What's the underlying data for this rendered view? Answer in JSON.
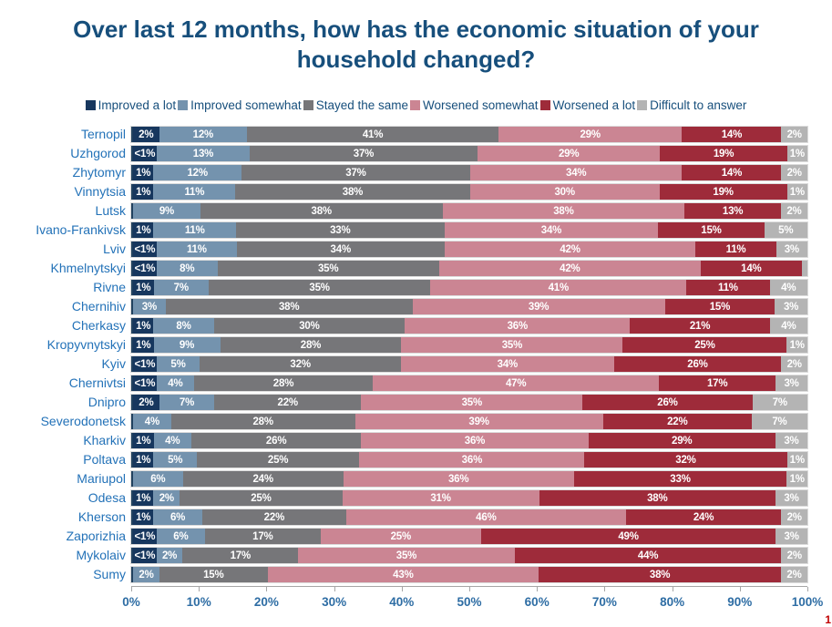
{
  "title": "Over last 12 months, how has the economic situation of your household changed?",
  "page_number": "1",
  "colors": {
    "title_text": "#174F7C",
    "category_text": "#2372B8",
    "axis_text": "#2E6DA4",
    "segment_label_text": "#ffffff"
  },
  "chart_data": {
    "type": "bar",
    "stacked": true,
    "orientation": "horizontal",
    "title": "Over last 12 months, how has the economic situation of your household changed?",
    "xlabel": "",
    "ylabel": "",
    "xlim": [
      0,
      100
    ],
    "grid": false,
    "legend_position": "top",
    "x_axis_ticks": [
      "0%",
      "10%",
      "20%",
      "30%",
      "40%",
      "50%",
      "60%",
      "70%",
      "80%",
      "90%",
      "100%"
    ],
    "categories": [
      "Ternopil",
      "Uzhgorod",
      "Zhytomyr",
      "Vinnytsia",
      "Lutsk",
      "Ivano-Frankivsk",
      "Lviv",
      "Khmelnytskyi",
      "Rivne",
      "Chernihiv",
      "Cherkasy",
      "Kropyvnytskyi",
      "Kyiv",
      "Chernivtsi",
      "Dnipro",
      "Severodonetsk",
      "Kharkiv",
      "Poltava",
      "Mariupol",
      "Odesa",
      "Kherson",
      "Zaporizhia",
      "Mykolaiv",
      "Sumy"
    ],
    "series": [
      {
        "name": "Improved a lot",
        "color": "#17375E",
        "values": [
          2,
          0.5,
          1,
          1,
          0,
          1,
          0.5,
          0.5,
          1,
          0,
          1,
          1,
          0.5,
          0.5,
          2,
          0,
          1,
          1,
          0,
          1,
          1,
          0.5,
          0.5,
          0
        ],
        "labels": [
          "2%",
          "<1%",
          "1%",
          "1%",
          "",
          "1%",
          "<1%",
          "<1%",
          "1%",
          "",
          "1%",
          "1%",
          "<1%",
          "<1%",
          "2%",
          "",
          "1%",
          "1%",
          "",
          "1%",
          "1%",
          "<1%",
          "<1%",
          ""
        ]
      },
      {
        "name": "Improved somewhat",
        "color": "#7493AE",
        "values": [
          12,
          13,
          12,
          11,
          9,
          11,
          11,
          8,
          7,
          3,
          8,
          9,
          5,
          4,
          7,
          4,
          4,
          5,
          6,
          2,
          6,
          6,
          2,
          2
        ],
        "labels": [
          "12%",
          "13%",
          "12%",
          "11%",
          "9%",
          "11%",
          "11%",
          "8%",
          "7%",
          "3%",
          "8%",
          "9%",
          "5%",
          "4%",
          "7%",
          "4%",
          "4%",
          "5%",
          "6%",
          "2%",
          "6%",
          "6%",
          "2%",
          "2%"
        ]
      },
      {
        "name": "Stayed the same",
        "color": "#767679",
        "values": [
          41,
          37,
          37,
          38,
          38,
          33,
          34,
          35,
          35,
          38,
          30,
          28,
          32,
          28,
          22,
          28,
          26,
          25,
          24,
          25,
          22,
          17,
          17,
          15
        ],
        "labels": [
          "41%",
          "37%",
          "37%",
          "38%",
          "38%",
          "33%",
          "34%",
          "35%",
          "35%",
          "38%",
          "30%",
          "28%",
          "32%",
          "28%",
          "22%",
          "28%",
          "26%",
          "25%",
          "24%",
          "25%",
          "22%",
          "17%",
          "17%",
          "15%"
        ]
      },
      {
        "name": "Worsened somewhat",
        "color": "#CB8593",
        "values": [
          29,
          29,
          34,
          30,
          38,
          34,
          42,
          42,
          41,
          39,
          36,
          35,
          34,
          47,
          35,
          39,
          36,
          36,
          36,
          31,
          46,
          25,
          35,
          43
        ],
        "labels": [
          "29%",
          "29%",
          "34%",
          "30%",
          "38%",
          "34%",
          "42%",
          "42%",
          "41%",
          "39%",
          "36%",
          "35%",
          "34%",
          "47%",
          "35%",
          "39%",
          "36%",
          "36%",
          "36%",
          "31%",
          "46%",
          "25%",
          "35%",
          "43%"
        ]
      },
      {
        "name": "Worsened a lot",
        "color": "#9E2B3A",
        "values": [
          14,
          19,
          14,
          19,
          13,
          15,
          11,
          14,
          11,
          15,
          21,
          25,
          26,
          17,
          26,
          22,
          29,
          32,
          33,
          38,
          24,
          49,
          44,
          38
        ],
        "labels": [
          "14%",
          "19%",
          "14%",
          "19%",
          "13%",
          "15%",
          "11%",
          "14%",
          "11%",
          "15%",
          "21%",
          "25%",
          "26%",
          "17%",
          "26%",
          "22%",
          "29%",
          "32%",
          "33%",
          "38%",
          "24%",
          "49%",
          "44%",
          "38%"
        ]
      },
      {
        "name": "Difficult to answer",
        "color": "#B4B4B4",
        "values": [
          2,
          1,
          2,
          1,
          2,
          5,
          3,
          1,
          4,
          3,
          4,
          1,
          2,
          3,
          7,
          7,
          3,
          1,
          1,
          3,
          2,
          3,
          2,
          2
        ],
        "labels": [
          "2%",
          "1%",
          "2%",
          "1%",
          "2%",
          "5%",
          "3%",
          "",
          "4%",
          "3%",
          "4%",
          "1%",
          "2%",
          "3%",
          "7%",
          "7%",
          "3%",
          "1%",
          "1%",
          "3%",
          "2%",
          "3%",
          "2%",
          "2%"
        ]
      }
    ]
  }
}
